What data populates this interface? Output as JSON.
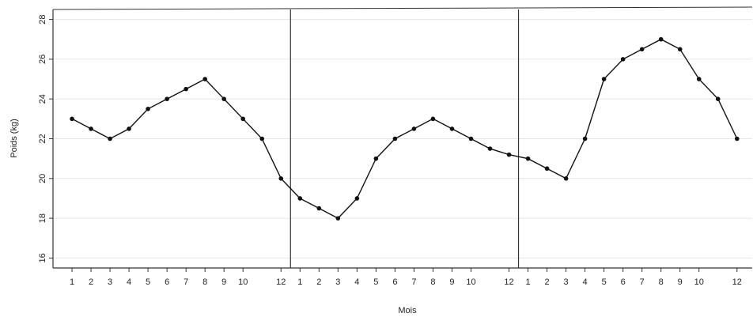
{
  "chart_data": {
    "type": "line",
    "xlabel": "Mois",
    "ylabel": "Poids (kg)",
    "ylim": [
      15.5,
      28.5
    ],
    "yticks": [
      16,
      18,
      20,
      22,
      24,
      26,
      28
    ],
    "grid": true,
    "legend": "none",
    "colors": {
      "line": "#111111",
      "marker": "#111111",
      "grid": "#e6e6e6",
      "axis": "#333333"
    },
    "x_tick_labels": [
      "1",
      "2",
      "3",
      "4",
      "5",
      "6",
      "7",
      "8",
      "9",
      "10",
      "12",
      "1",
      "2",
      "3",
      "4",
      "5",
      "6",
      "7",
      "8",
      "9",
      "10",
      "12",
      "1",
      "2",
      "3",
      "4",
      "5",
      "6",
      "7",
      "8",
      "9",
      "10",
      "12"
    ],
    "x_tick_positions": [
      1,
      2,
      3,
      4,
      5,
      6,
      7,
      8,
      9,
      10,
      12,
      13,
      14,
      15,
      16,
      17,
      18,
      19,
      20,
      21,
      22,
      24,
      25,
      26,
      27,
      28,
      29,
      30,
      31,
      32,
      33,
      34,
      36
    ],
    "xlim": [
      0,
      36.8
    ],
    "separators": [
      12.5,
      24.5
    ],
    "series": [
      {
        "x": [
          1,
          2,
          3,
          4,
          5,
          6,
          7,
          8,
          9,
          10,
          11,
          12,
          13,
          14,
          15,
          16,
          17,
          18,
          19,
          20,
          21,
          22,
          23,
          24,
          25,
          26,
          27,
          28,
          29,
          30,
          31,
          32,
          33,
          34,
          35,
          36
        ],
        "values": [
          23,
          22.5,
          22,
          22.5,
          23.5,
          24,
          24.5,
          25,
          24,
          23,
          22,
          20,
          19,
          18.5,
          18,
          19,
          21,
          22,
          22.5,
          23,
          22.5,
          22,
          21.5,
          21.2,
          21,
          20.5,
          20,
          22,
          25,
          26,
          26.5,
          27,
          26.5,
          25,
          24,
          22
        ]
      }
    ]
  }
}
